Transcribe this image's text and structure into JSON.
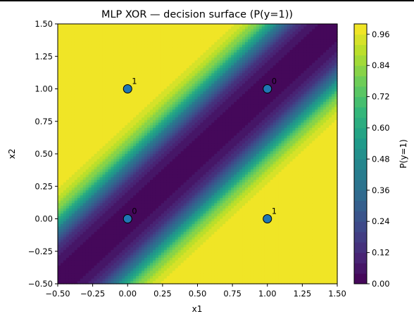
{
  "chart_data": {
    "type": "heatmap",
    "title": "MLP XOR — decision surface (P(y=1))",
    "xlabel": "x1",
    "ylabel": "x2",
    "xlim": [
      -0.5,
      1.5
    ],
    "ylim": [
      -0.5,
      1.5
    ],
    "x_ticks": [
      "−0.50",
      "−0.25",
      "0.00",
      "0.25",
      "0.50",
      "0.75",
      "1.00",
      "1.25",
      "1.50"
    ],
    "y_ticks": [
      "−0.50",
      "−0.25",
      "0.00",
      "0.25",
      "0.50",
      "0.75",
      "1.00",
      "1.25",
      "1.50"
    ],
    "x_tick_values": [
      -0.5,
      -0.25,
      0,
      0.25,
      0.5,
      0.75,
      1.0,
      1.25,
      1.5
    ],
    "y_tick_values": [
      -0.5,
      -0.25,
      0,
      0.25,
      0.5,
      0.75,
      1.0,
      1.25,
      1.5
    ],
    "colorbar": {
      "label": "P(y=1)",
      "range": [
        0,
        1
      ],
      "ticks": [
        "0.00",
        "0.12",
        "0.24",
        "0.36",
        "0.48",
        "0.60",
        "0.72",
        "0.84",
        "0.96"
      ],
      "tick_values": [
        0,
        0.12,
        0.24,
        0.36,
        0.48,
        0.6,
        0.72,
        0.84,
        0.96
      ],
      "colormap": "viridis",
      "levels": 25
    },
    "points": [
      {
        "x": 0,
        "y": 0,
        "label": "0"
      },
      {
        "x": 0,
        "y": 1,
        "label": "1"
      },
      {
        "x": 1,
        "y": 0,
        "label": "1"
      },
      {
        "x": 1,
        "y": 1,
        "label": "0"
      }
    ],
    "point_color": "#1f77b4",
    "grid": false
  }
}
